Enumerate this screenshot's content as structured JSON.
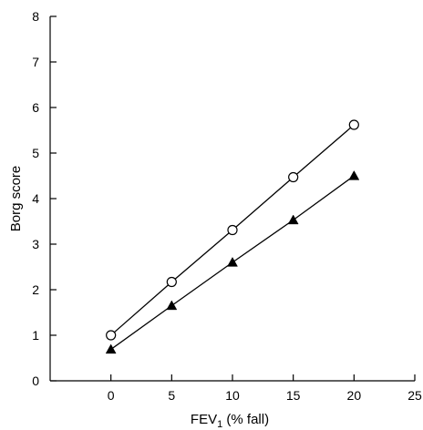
{
  "chart_data": {
    "type": "line",
    "xlabel": "FEV",
    "xlabel_sub": "1",
    "xlabel_suffix": " (% fall)",
    "ylabel": "Borg score",
    "xlim": [
      -5,
      25
    ],
    "ylim": [
      0,
      8
    ],
    "xticks": [
      0,
      5,
      10,
      15,
      20,
      25
    ],
    "yticks": [
      0,
      1,
      2,
      3,
      4,
      5,
      6,
      7,
      8
    ],
    "grid": false,
    "x": [
      0,
      5,
      10,
      15,
      20
    ],
    "series": [
      {
        "marker": "open-circle",
        "values": [
          1.0,
          2.17,
          3.31,
          4.47,
          5.62
        ]
      },
      {
        "marker": "filled-triangle",
        "values": [
          0.69,
          1.65,
          2.6,
          3.53,
          4.5
        ]
      }
    ]
  }
}
